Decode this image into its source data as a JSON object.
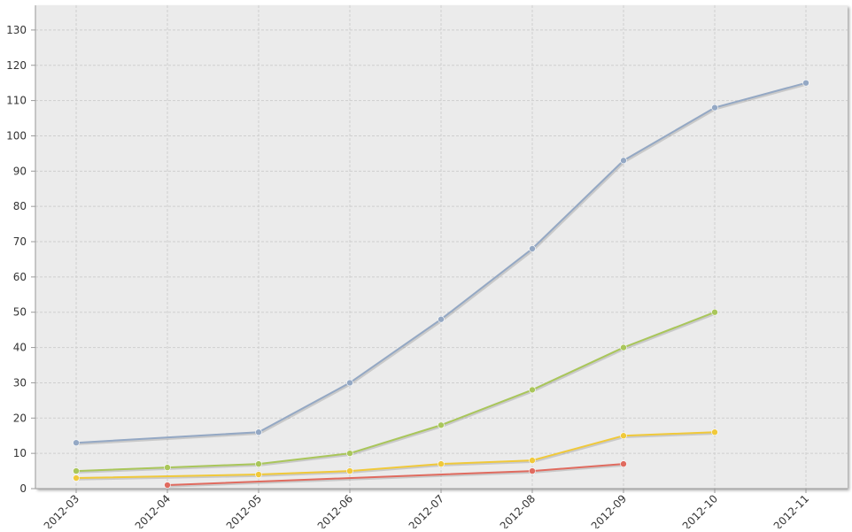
{
  "chart_data": {
    "type": "line",
    "x": [
      "2012-03",
      "2012-04",
      "2012-05",
      "2012-06",
      "2012-07",
      "2012-08",
      "2012-09",
      "2012-10",
      "2012-11"
    ],
    "y_ticks": [
      0,
      10,
      20,
      30,
      40,
      50,
      60,
      70,
      80,
      90,
      100,
      110,
      120,
      130
    ],
    "ylim": [
      0,
      137
    ],
    "grid": true,
    "legend": "none",
    "background": "#ebebeb",
    "series": [
      {
        "color": "#94a8c4",
        "values": [
          13,
          null,
          16,
          30,
          48,
          68,
          93,
          108,
          115
        ]
      },
      {
        "color": "#a9c65a",
        "values": [
          5,
          6,
          7,
          10,
          18,
          28,
          40,
          50,
          null
        ]
      },
      {
        "color": "#f0c93a",
        "values": [
          3,
          null,
          4,
          5,
          7,
          8,
          15,
          16,
          null
        ]
      },
      {
        "color": "#e06b5f",
        "values": [
          null,
          1,
          null,
          null,
          null,
          5,
          7,
          null,
          null
        ]
      }
    ]
  }
}
